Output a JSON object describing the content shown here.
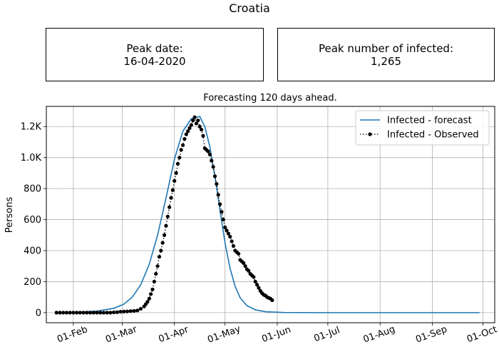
{
  "suptitle": "Croatia",
  "peak_date": {
    "label": "Peak date:",
    "value": "16-04-2020"
  },
  "peak_infected": {
    "label": "Peak number of infected:",
    "value": "1,265"
  },
  "chart_data": {
    "type": "line",
    "title": "Forecasting 120 days ahead.",
    "xlabel": "",
    "ylabel": "Persons",
    "grid": true,
    "legend_position": "top-right",
    "xlim": [
      "2020-01-16",
      "2020-10-08"
    ],
    "ylim": [
      -65,
      1330
    ],
    "x_ticks": [
      {
        "date": "2020-02-01",
        "label": "01-Feb"
      },
      {
        "date": "2020-03-01",
        "label": "01-Mar"
      },
      {
        "date": "2020-04-01",
        "label": "01-Apr"
      },
      {
        "date": "2020-05-01",
        "label": "01-May"
      },
      {
        "date": "2020-06-01",
        "label": "01-Jun"
      },
      {
        "date": "2020-07-01",
        "label": "01-Jul"
      },
      {
        "date": "2020-08-01",
        "label": "01-Aug"
      },
      {
        "date": "2020-09-01",
        "label": "01-Sep"
      },
      {
        "date": "2020-10-01",
        "label": "01-Oct"
      }
    ],
    "y_ticks": [
      {
        "value": 0,
        "label": "0"
      },
      {
        "value": 200,
        "label": "200"
      },
      {
        "value": 400,
        "label": "400"
      },
      {
        "value": 600,
        "label": "600"
      },
      {
        "value": 800,
        "label": "800"
      },
      {
        "value": 1000,
        "label": "1.0K"
      },
      {
        "value": 1200,
        "label": "1.2K"
      }
    ],
    "series": [
      {
        "name": "Infected - forecast",
        "color": "#1f77b4",
        "style": "solid",
        "points": [
          [
            "2020-01-22",
            0
          ],
          [
            "2020-02-05",
            3
          ],
          [
            "2020-02-15",
            10
          ],
          [
            "2020-02-25",
            28
          ],
          [
            "2020-03-02",
            55
          ],
          [
            "2020-03-07",
            100
          ],
          [
            "2020-03-12",
            180
          ],
          [
            "2020-03-17",
            310
          ],
          [
            "2020-03-22",
            500
          ],
          [
            "2020-03-27",
            740
          ],
          [
            "2020-04-01",
            990
          ],
          [
            "2020-04-06",
            1170
          ],
          [
            "2020-04-11",
            1250
          ],
          [
            "2020-04-16",
            1265
          ],
          [
            "2020-04-19",
            1200
          ],
          [
            "2020-04-22",
            1070
          ],
          [
            "2020-04-25",
            880
          ],
          [
            "2020-04-28",
            660
          ],
          [
            "2020-05-01",
            450
          ],
          [
            "2020-05-04",
            285
          ],
          [
            "2020-05-07",
            170
          ],
          [
            "2020-05-10",
            95
          ],
          [
            "2020-05-14",
            45
          ],
          [
            "2020-05-19",
            18
          ],
          [
            "2020-05-25",
            6
          ],
          [
            "2020-06-05",
            1
          ],
          [
            "2020-07-01",
            0
          ],
          [
            "2020-09-29",
            0
          ]
        ]
      },
      {
        "name": "Infected - Observed",
        "color": "#000000",
        "style": "dotted-markers",
        "points": [
          [
            "2020-01-22",
            0
          ],
          [
            "2020-01-24",
            0
          ],
          [
            "2020-01-26",
            0
          ],
          [
            "2020-01-28",
            0
          ],
          [
            "2020-01-30",
            0
          ],
          [
            "2020-02-01",
            0
          ],
          [
            "2020-02-03",
            0
          ],
          [
            "2020-02-05",
            0
          ],
          [
            "2020-02-07",
            0
          ],
          [
            "2020-02-09",
            0
          ],
          [
            "2020-02-11",
            0
          ],
          [
            "2020-02-13",
            0
          ],
          [
            "2020-02-15",
            0
          ],
          [
            "2020-02-17",
            0
          ],
          [
            "2020-02-19",
            0
          ],
          [
            "2020-02-21",
            0
          ],
          [
            "2020-02-23",
            0
          ],
          [
            "2020-02-25",
            2
          ],
          [
            "2020-02-27",
            3
          ],
          [
            "2020-02-29",
            6
          ],
          [
            "2020-03-02",
            7
          ],
          [
            "2020-03-04",
            8
          ],
          [
            "2020-03-06",
            10
          ],
          [
            "2020-03-08",
            11
          ],
          [
            "2020-03-10",
            14
          ],
          [
            "2020-03-12",
            25
          ],
          [
            "2020-03-14",
            40
          ],
          [
            "2020-03-15",
            55
          ],
          [
            "2020-03-16",
            70
          ],
          [
            "2020-03-17",
            90
          ],
          [
            "2020-03-18",
            120
          ],
          [
            "2020-03-19",
            150
          ],
          [
            "2020-03-20",
            200
          ],
          [
            "2020-03-21",
            250
          ],
          [
            "2020-03-22",
            300
          ],
          [
            "2020-03-23",
            360
          ],
          [
            "2020-03-24",
            400
          ],
          [
            "2020-03-25",
            450
          ],
          [
            "2020-03-26",
            500
          ],
          [
            "2020-03-27",
            560
          ],
          [
            "2020-03-28",
            620
          ],
          [
            "2020-03-29",
            680
          ],
          [
            "2020-03-30",
            740
          ],
          [
            "2020-03-31",
            790
          ],
          [
            "2020-04-01",
            850
          ],
          [
            "2020-04-02",
            900
          ],
          [
            "2020-04-03",
            960
          ],
          [
            "2020-04-04",
            1000
          ],
          [
            "2020-04-05",
            1050
          ],
          [
            "2020-04-06",
            1080
          ],
          [
            "2020-04-07",
            1120
          ],
          [
            "2020-04-08",
            1150
          ],
          [
            "2020-04-09",
            1170
          ],
          [
            "2020-04-10",
            1190
          ],
          [
            "2020-04-11",
            1210
          ],
          [
            "2020-04-12",
            1240
          ],
          [
            "2020-04-13",
            1260
          ],
          [
            "2020-04-14",
            1220
          ],
          [
            "2020-04-15",
            1240
          ],
          [
            "2020-04-16",
            1200
          ],
          [
            "2020-04-17",
            1180
          ],
          [
            "2020-04-18",
            1140
          ],
          [
            "2020-04-19",
            1060
          ],
          [
            "2020-04-20",
            1050
          ],
          [
            "2020-04-21",
            1040
          ],
          [
            "2020-04-22",
            1020
          ],
          [
            "2020-04-23",
            980
          ],
          [
            "2020-04-24",
            940
          ],
          [
            "2020-04-25",
            880
          ],
          [
            "2020-04-26",
            830
          ],
          [
            "2020-04-27",
            760
          ],
          [
            "2020-04-28",
            700
          ],
          [
            "2020-04-29",
            650
          ],
          [
            "2020-04-30",
            600
          ],
          [
            "2020-05-01",
            550
          ],
          [
            "2020-05-02",
            530
          ],
          [
            "2020-05-03",
            510
          ],
          [
            "2020-05-04",
            490
          ],
          [
            "2020-05-05",
            460
          ],
          [
            "2020-05-06",
            430
          ],
          [
            "2020-05-07",
            400
          ],
          [
            "2020-05-08",
            390
          ],
          [
            "2020-05-09",
            380
          ],
          [
            "2020-05-10",
            340
          ],
          [
            "2020-05-11",
            330
          ],
          [
            "2020-05-12",
            320
          ],
          [
            "2020-05-13",
            300
          ],
          [
            "2020-05-14",
            280
          ],
          [
            "2020-05-15",
            270
          ],
          [
            "2020-05-16",
            250
          ],
          [
            "2020-05-17",
            240
          ],
          [
            "2020-05-18",
            230
          ],
          [
            "2020-05-19",
            200
          ],
          [
            "2020-05-20",
            180
          ],
          [
            "2020-05-21",
            160
          ],
          [
            "2020-05-22",
            140
          ],
          [
            "2020-05-23",
            125
          ],
          [
            "2020-05-24",
            115
          ],
          [
            "2020-05-25",
            110
          ],
          [
            "2020-05-26",
            100
          ],
          [
            "2020-05-27",
            95
          ],
          [
            "2020-05-28",
            90
          ],
          [
            "2020-05-29",
            80
          ]
        ]
      }
    ]
  }
}
